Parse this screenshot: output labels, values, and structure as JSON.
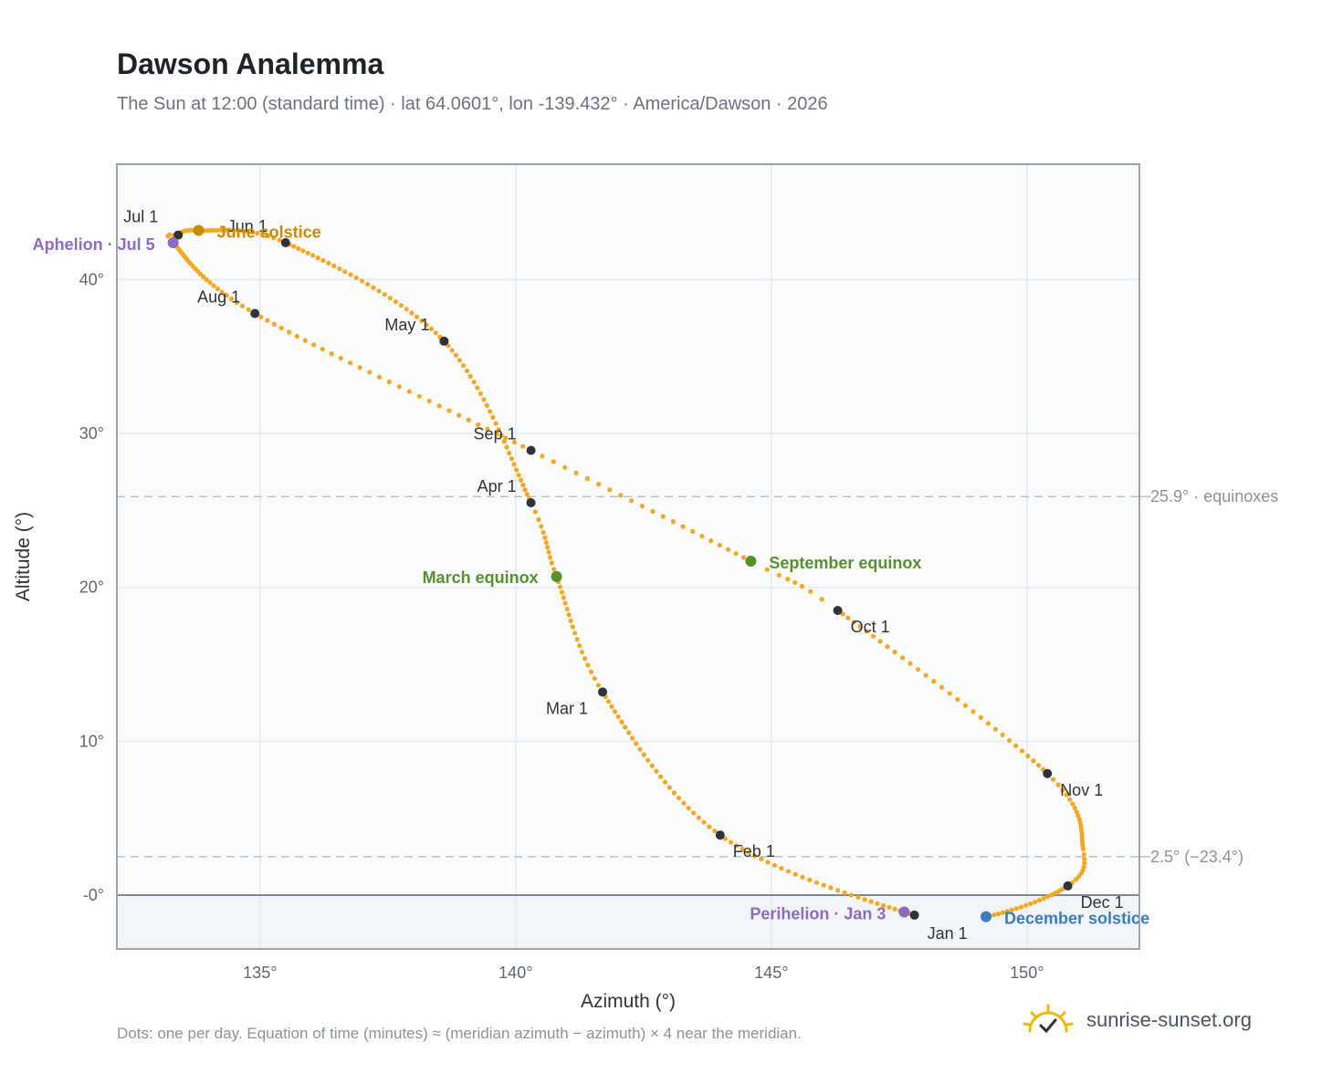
{
  "header": {
    "title": "Dawson Analemma",
    "subtitle": "The Sun at 12:00 (standard time) · lat 64.0601°, lon -139.432° · America/Dawson · 2026"
  },
  "footer": {
    "note": "Dots: one per day. Equation of time (minutes) ≈ (meridian azimuth − azimuth) × 4 near the meridian.",
    "brand": "sunrise-sunset.org"
  },
  "colors": {
    "curve": "#f5a623",
    "month_dot": "#2d333b",
    "solstice_june": "#c98a06",
    "equinox": "#5a8f2f",
    "december_solstice": "#3b7cc0",
    "apsis": "#8e6ac0",
    "below_horizon_fill": "#f2f5f8",
    "grid": "#e6e9ed",
    "ref_line": "#b7c0ca"
  },
  "chart_data": {
    "type": "scatter",
    "title": "Dawson Analemma",
    "xlabel": "Azimuth (°)",
    "ylabel": "Altitude (°)",
    "xlim": [
      132.2,
      152.2
    ],
    "ylim": [
      -3.5,
      47.5
    ],
    "xticks": [
      135,
      140,
      145,
      150
    ],
    "xtick_labels": [
      "135°",
      "140°",
      "145°",
      "150°"
    ],
    "yticks": [
      0,
      10,
      20,
      30,
      40
    ],
    "ytick_labels": [
      "-0°",
      "10°",
      "20°",
      "30°",
      "40°"
    ],
    "grid": true,
    "reference_lines": [
      {
        "y": 25.9,
        "label": "25.9° · equinoxes"
      },
      {
        "y": 2.5,
        "label": "2.5° (−23.4°)"
      }
    ],
    "horizon_y": 0,
    "months": [
      {
        "label": "Jan 1",
        "az": 147.8,
        "alt": -1.3
      },
      {
        "label": "Feb 1",
        "az": 144.0,
        "alt": 3.9
      },
      {
        "label": "Mar 1",
        "az": 141.7,
        "alt": 13.2
      },
      {
        "label": "Apr 1",
        "az": 140.3,
        "alt": 25.5
      },
      {
        "label": "May 1",
        "az": 138.6,
        "alt": 36.0
      },
      {
        "label": "Jun 1",
        "az": 135.5,
        "alt": 42.4
      },
      {
        "label": "Jul 1",
        "az": 133.4,
        "alt": 42.9
      },
      {
        "label": "Aug 1",
        "az": 134.9,
        "alt": 37.8
      },
      {
        "label": "Sep 1",
        "az": 140.3,
        "alt": 28.9
      },
      {
        "label": "Oct 1",
        "az": 146.3,
        "alt": 18.5
      },
      {
        "label": "Nov 1",
        "az": 150.4,
        "alt": 7.9
      },
      {
        "label": "Dec 1",
        "az": 150.8,
        "alt": 0.6
      }
    ],
    "events": [
      {
        "label": "June solstice",
        "az": 133.8,
        "alt": 43.2,
        "color_key": "solstice_june"
      },
      {
        "label": "Aphelion · Jul 5",
        "az": 133.3,
        "alt": 42.4,
        "color_key": "apsis"
      },
      {
        "label": "March equinox",
        "az": 140.8,
        "alt": 20.7,
        "color_key": "equinox"
      },
      {
        "label": "September equinox",
        "az": 144.6,
        "alt": 21.7,
        "color_key": "equinox"
      },
      {
        "label": "Perihelion · Jan 3",
        "az": 147.6,
        "alt": -1.1,
        "color_key": "apsis"
      },
      {
        "label": "December solstice",
        "az": 149.2,
        "alt": -1.4,
        "color_key": "december_solstice"
      }
    ],
    "curve_anchor_points": [
      {
        "date_index": 0,
        "az": 147.8,
        "alt": -1.3
      },
      {
        "date_index": 31,
        "az": 144.0,
        "alt": 3.9
      },
      {
        "date_index": 59,
        "az": 141.7,
        "alt": 13.2
      },
      {
        "date_index": 78,
        "az": 140.8,
        "alt": 20.7
      },
      {
        "date_index": 90,
        "az": 140.3,
        "alt": 25.5
      },
      {
        "date_index": 120,
        "az": 138.6,
        "alt": 36.0
      },
      {
        "date_index": 151,
        "az": 135.5,
        "alt": 42.4
      },
      {
        "date_index": 171,
        "az": 133.8,
        "alt": 43.2
      },
      {
        "date_index": 181,
        "az": 133.4,
        "alt": 42.9
      },
      {
        "date_index": 185,
        "az": 133.3,
        "alt": 42.4
      },
      {
        "date_index": 212,
        "az": 134.9,
        "alt": 37.8
      },
      {
        "date_index": 243,
        "az": 140.3,
        "alt": 28.9
      },
      {
        "date_index": 265,
        "az": 144.6,
        "alt": 21.7
      },
      {
        "date_index": 273,
        "az": 146.3,
        "alt": 18.5
      },
      {
        "date_index": 304,
        "az": 150.4,
        "alt": 7.9
      },
      {
        "date_index": 324,
        "az": 151.1,
        "alt": 3.0
      },
      {
        "date_index": 334,
        "az": 150.8,
        "alt": 0.6
      },
      {
        "date_index": 354,
        "az": 149.2,
        "alt": -1.4
      },
      {
        "date_index": 365,
        "az": 147.8,
        "alt": -1.3
      }
    ]
  }
}
